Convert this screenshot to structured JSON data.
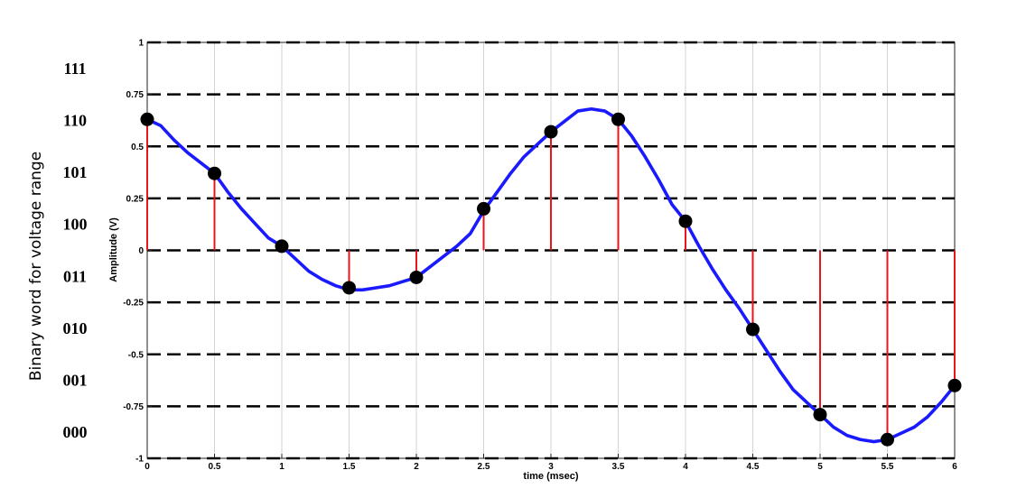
{
  "chart_data": {
    "type": "line",
    "xlabel": "time (msec)",
    "ylabel": "Amplitude (V)",
    "xlim": [
      0,
      6
    ],
    "ylim": [
      -1,
      1
    ],
    "x_ticks": [
      "0",
      "0.5",
      "1",
      "1.5",
      "2",
      "2.5",
      "3",
      "3.5",
      "4",
      "4.5",
      "5",
      "5.5",
      "6"
    ],
    "y_ticks": [
      "1",
      "0.75",
      "0.5",
      "0.25",
      "0",
      "-0.25",
      "-0.5",
      "-0.75",
      "-1"
    ],
    "grid": "vertical",
    "quantization_levels": [
      1,
      0.75,
      0.5,
      0.25,
      0,
      -0.25,
      -0.5,
      -0.75,
      -1
    ],
    "colors": {
      "curve": "#1a1aff",
      "stems": "#e8151b",
      "samples": "#000000",
      "levels": "#000000"
    },
    "series": [
      {
        "type": "line",
        "x": [
          0,
          0.1,
          0.2,
          0.3,
          0.4,
          0.5,
          0.6,
          0.7,
          0.8,
          0.9,
          1.0,
          1.1,
          1.2,
          1.3,
          1.4,
          1.5,
          1.6,
          1.7,
          1.8,
          1.9,
          2.0,
          2.1,
          2.2,
          2.3,
          2.4,
          2.5,
          2.6,
          2.7,
          2.8,
          2.9,
          3.0,
          3.1,
          3.2,
          3.3,
          3.4,
          3.5,
          3.6,
          3.7,
          3.8,
          3.9,
          4.0,
          4.1,
          4.2,
          4.3,
          4.4,
          4.5,
          4.6,
          4.7,
          4.8,
          4.9,
          5.0,
          5.1,
          5.2,
          5.3,
          5.4,
          5.5,
          5.6,
          5.7,
          5.8,
          5.9,
          6.0
        ],
        "y": [
          0.63,
          0.6,
          0.53,
          0.47,
          0.42,
          0.37,
          0.28,
          0.2,
          0.13,
          0.06,
          0.02,
          -0.04,
          -0.1,
          -0.14,
          -0.17,
          -0.19,
          -0.19,
          -0.18,
          -0.17,
          -0.15,
          -0.13,
          -0.08,
          -0.03,
          0.02,
          0.08,
          0.19,
          0.28,
          0.37,
          0.45,
          0.51,
          0.57,
          0.62,
          0.67,
          0.68,
          0.67,
          0.63,
          0.55,
          0.45,
          0.34,
          0.22,
          0.14,
          0.02,
          -0.09,
          -0.19,
          -0.28,
          -0.38,
          -0.48,
          -0.58,
          -0.67,
          -0.73,
          -0.79,
          -0.85,
          -0.89,
          -0.91,
          -0.92,
          -0.91,
          -0.88,
          -0.85,
          -0.8,
          -0.73,
          -0.65
        ]
      },
      {
        "type": "stem",
        "x": [
          0,
          0.5,
          1.0,
          1.5,
          2.0,
          2.5,
          3.0,
          3.5,
          4.0,
          4.5,
          5.0,
          5.5,
          6.0
        ],
        "y": [
          0.63,
          0.37,
          0.02,
          -0.18,
          -0.13,
          0.2,
          0.57,
          0.63,
          0.14,
          -0.38,
          -0.79,
          -0.91,
          -0.65
        ]
      }
    ]
  },
  "side_axis": {
    "title": "Binary word for voltage range",
    "codes": [
      "111",
      "110",
      "101",
      "100",
      "011",
      "010",
      "001",
      "000"
    ]
  }
}
